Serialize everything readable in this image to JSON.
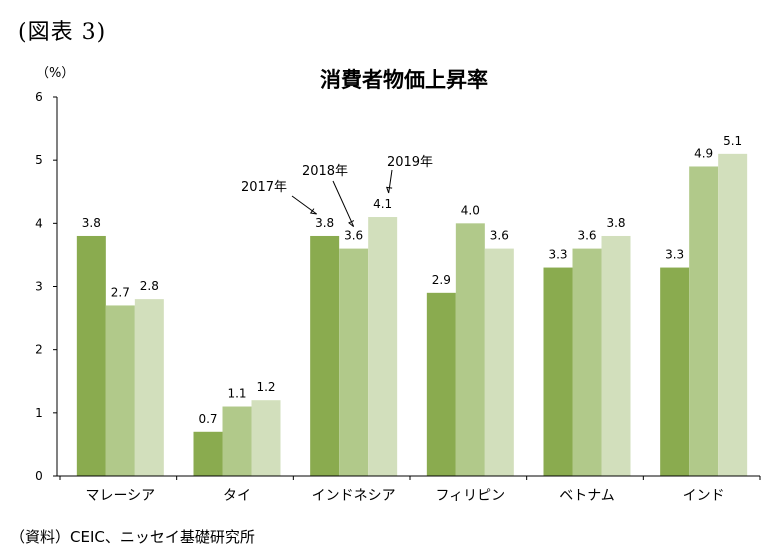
{
  "figure_label": "(図表 3)",
  "unit": "（%）",
  "source": "（資料）CEIC、ニッセイ基礎研究所",
  "colors": {
    "2017": "#8aab4f",
    "2018": "#b1c98a",
    "2019": "#d2dfbc",
    "axis": "#000000"
  },
  "annotations": [
    "2017年",
    "2018年",
    "2019年"
  ],
  "chart_data": {
    "type": "bar",
    "title": "消費者物価上昇率",
    "xlabel": "",
    "ylabel": "",
    "ylim": [
      0,
      6
    ],
    "yticks": [
      0,
      1,
      2,
      3,
      4,
      5,
      6
    ],
    "grid": false,
    "categories": [
      "マレーシア",
      "タイ",
      "インドネシア",
      "フィリピン",
      "ベトナム",
      "インド"
    ],
    "series": [
      {
        "name": "2017年",
        "values": [
          3.8,
          0.7,
          3.8,
          2.9,
          3.3,
          3.3
        ]
      },
      {
        "name": "2018年",
        "values": [
          2.7,
          1.1,
          3.6,
          4.0,
          3.6,
          4.9
        ]
      },
      {
        "name": "2019年",
        "values": [
          2.8,
          1.2,
          4.1,
          3.6,
          3.8,
          5.1
        ]
      }
    ],
    "labels": [
      [
        "3.8",
        "0.7",
        "3.8",
        "2.9",
        "3.3",
        "3.3"
      ],
      [
        "2.7",
        "1.1",
        "3.6",
        "4.0",
        "3.6",
        "4.9"
      ],
      [
        "2.8",
        "1.2",
        "4.1",
        "3.6",
        "3.8",
        "5.1"
      ]
    ]
  }
}
